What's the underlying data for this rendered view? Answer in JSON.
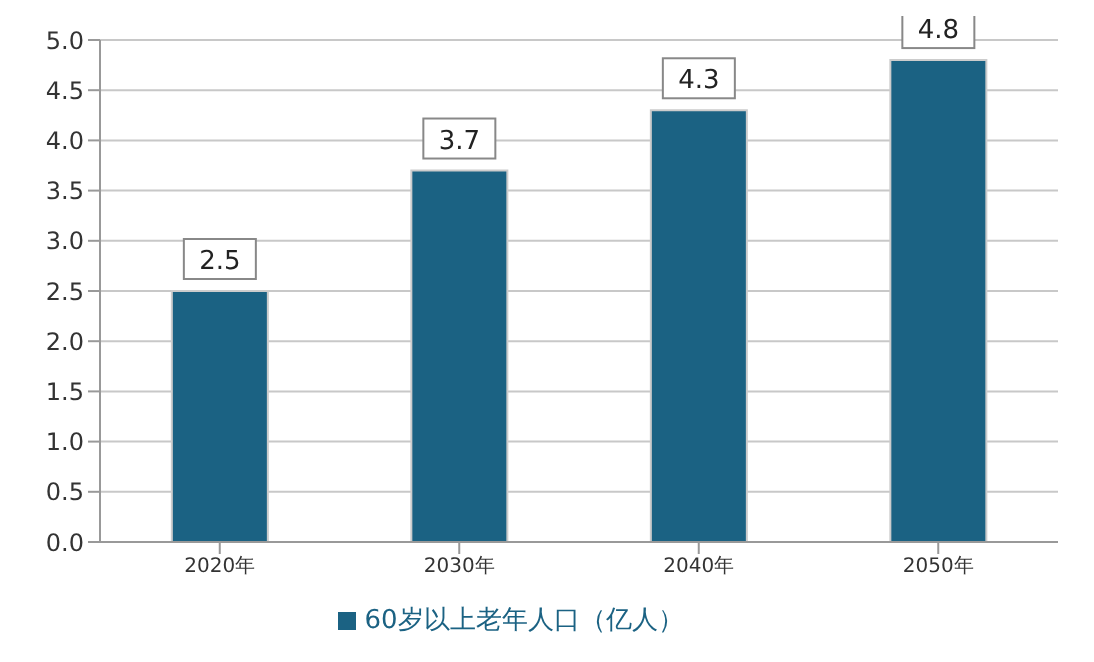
{
  "chart_data": {
    "type": "bar",
    "categories": [
      "2020年",
      "2030年",
      "2040年",
      "2050年"
    ],
    "series": [
      {
        "name": "60岁以上老年人口（亿人）",
        "color": "#1b6283",
        "values": [
          2.5,
          3.7,
          4.3,
          4.8
        ]
      }
    ],
    "ylim": [
      0,
      5
    ],
    "yticks": [
      "0.0",
      "0.5",
      "1.0",
      "1.5",
      "2.0",
      "2.5",
      "3.0",
      "3.5",
      "4.0",
      "4.5",
      "5.0"
    ],
    "grid": "y",
    "legend": "bottom",
    "data_labels": true
  }
}
